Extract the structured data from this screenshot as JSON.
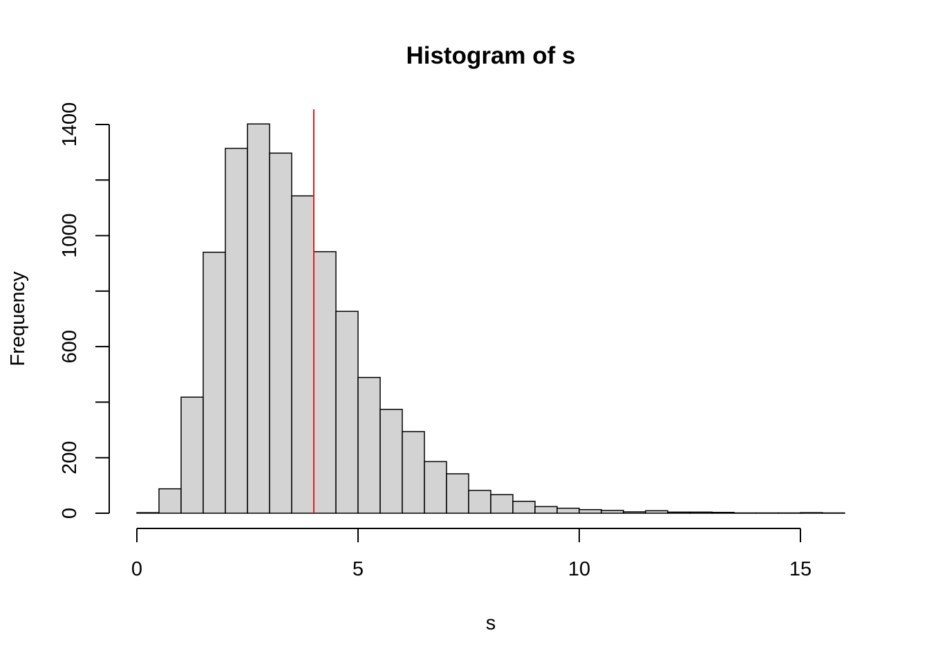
{
  "chart_data": {
    "type": "bar",
    "title": "Histogram of s",
    "xlabel": "s",
    "ylabel": "Frequency",
    "xlim": [
      0,
      16
    ],
    "ylim": [
      0,
      1400
    ],
    "x_ticks": [
      0,
      5,
      10,
      15
    ],
    "y_ticks": [
      0,
      200,
      400,
      600,
      800,
      1000,
      1200,
      1400
    ],
    "y_tick_labels": [
      "0",
      "200",
      "",
      "600",
      "",
      "1000",
      "",
      "1400"
    ],
    "bin_width": 0.5,
    "bins": [
      {
        "x0": 0.0,
        "x1": 0.5,
        "count": 2
      },
      {
        "x0": 0.5,
        "x1": 1.0,
        "count": 88
      },
      {
        "x0": 1.0,
        "x1": 1.5,
        "count": 418
      },
      {
        "x0": 1.5,
        "x1": 2.0,
        "count": 940
      },
      {
        "x0": 2.0,
        "x1": 2.5,
        "count": 1314
      },
      {
        "x0": 2.5,
        "x1": 3.0,
        "count": 1402
      },
      {
        "x0": 3.0,
        "x1": 3.5,
        "count": 1297
      },
      {
        "x0": 3.5,
        "x1": 4.0,
        "count": 1143
      },
      {
        "x0": 4.0,
        "x1": 4.5,
        "count": 942
      },
      {
        "x0": 4.5,
        "x1": 5.0,
        "count": 727
      },
      {
        "x0": 5.0,
        "x1": 5.5,
        "count": 489
      },
      {
        "x0": 5.5,
        "x1": 6.0,
        "count": 374
      },
      {
        "x0": 6.0,
        "x1": 6.5,
        "count": 294
      },
      {
        "x0": 6.5,
        "x1": 7.0,
        "count": 186
      },
      {
        "x0": 7.0,
        "x1": 7.5,
        "count": 142
      },
      {
        "x0": 7.5,
        "x1": 8.0,
        "count": 82
      },
      {
        "x0": 8.0,
        "x1": 8.5,
        "count": 67
      },
      {
        "x0": 8.5,
        "x1": 9.0,
        "count": 43
      },
      {
        "x0": 9.0,
        "x1": 9.5,
        "count": 24
      },
      {
        "x0": 9.5,
        "x1": 10.0,
        "count": 18
      },
      {
        "x0": 10.0,
        "x1": 10.5,
        "count": 13
      },
      {
        "x0": 10.5,
        "x1": 11.0,
        "count": 10
      },
      {
        "x0": 11.0,
        "x1": 11.5,
        "count": 5
      },
      {
        "x0": 11.5,
        "x1": 12.0,
        "count": 9
      },
      {
        "x0": 12.0,
        "x1": 12.5,
        "count": 4
      },
      {
        "x0": 12.5,
        "x1": 13.0,
        "count": 4
      },
      {
        "x0": 13.0,
        "x1": 13.5,
        "count": 3
      },
      {
        "x0": 13.5,
        "x1": 14.0,
        "count": 1
      },
      {
        "x0": 14.0,
        "x1": 14.5,
        "count": 1
      },
      {
        "x0": 14.5,
        "x1": 15.0,
        "count": 1
      },
      {
        "x0": 15.0,
        "x1": 15.5,
        "count": 2
      },
      {
        "x0": 15.5,
        "x1": 16.0,
        "count": 1
      }
    ],
    "reference_line": {
      "x": 4.0,
      "color": "#dd1c1c"
    },
    "bar_color": "#d3d3d3",
    "grid": false,
    "legend": "none"
  }
}
